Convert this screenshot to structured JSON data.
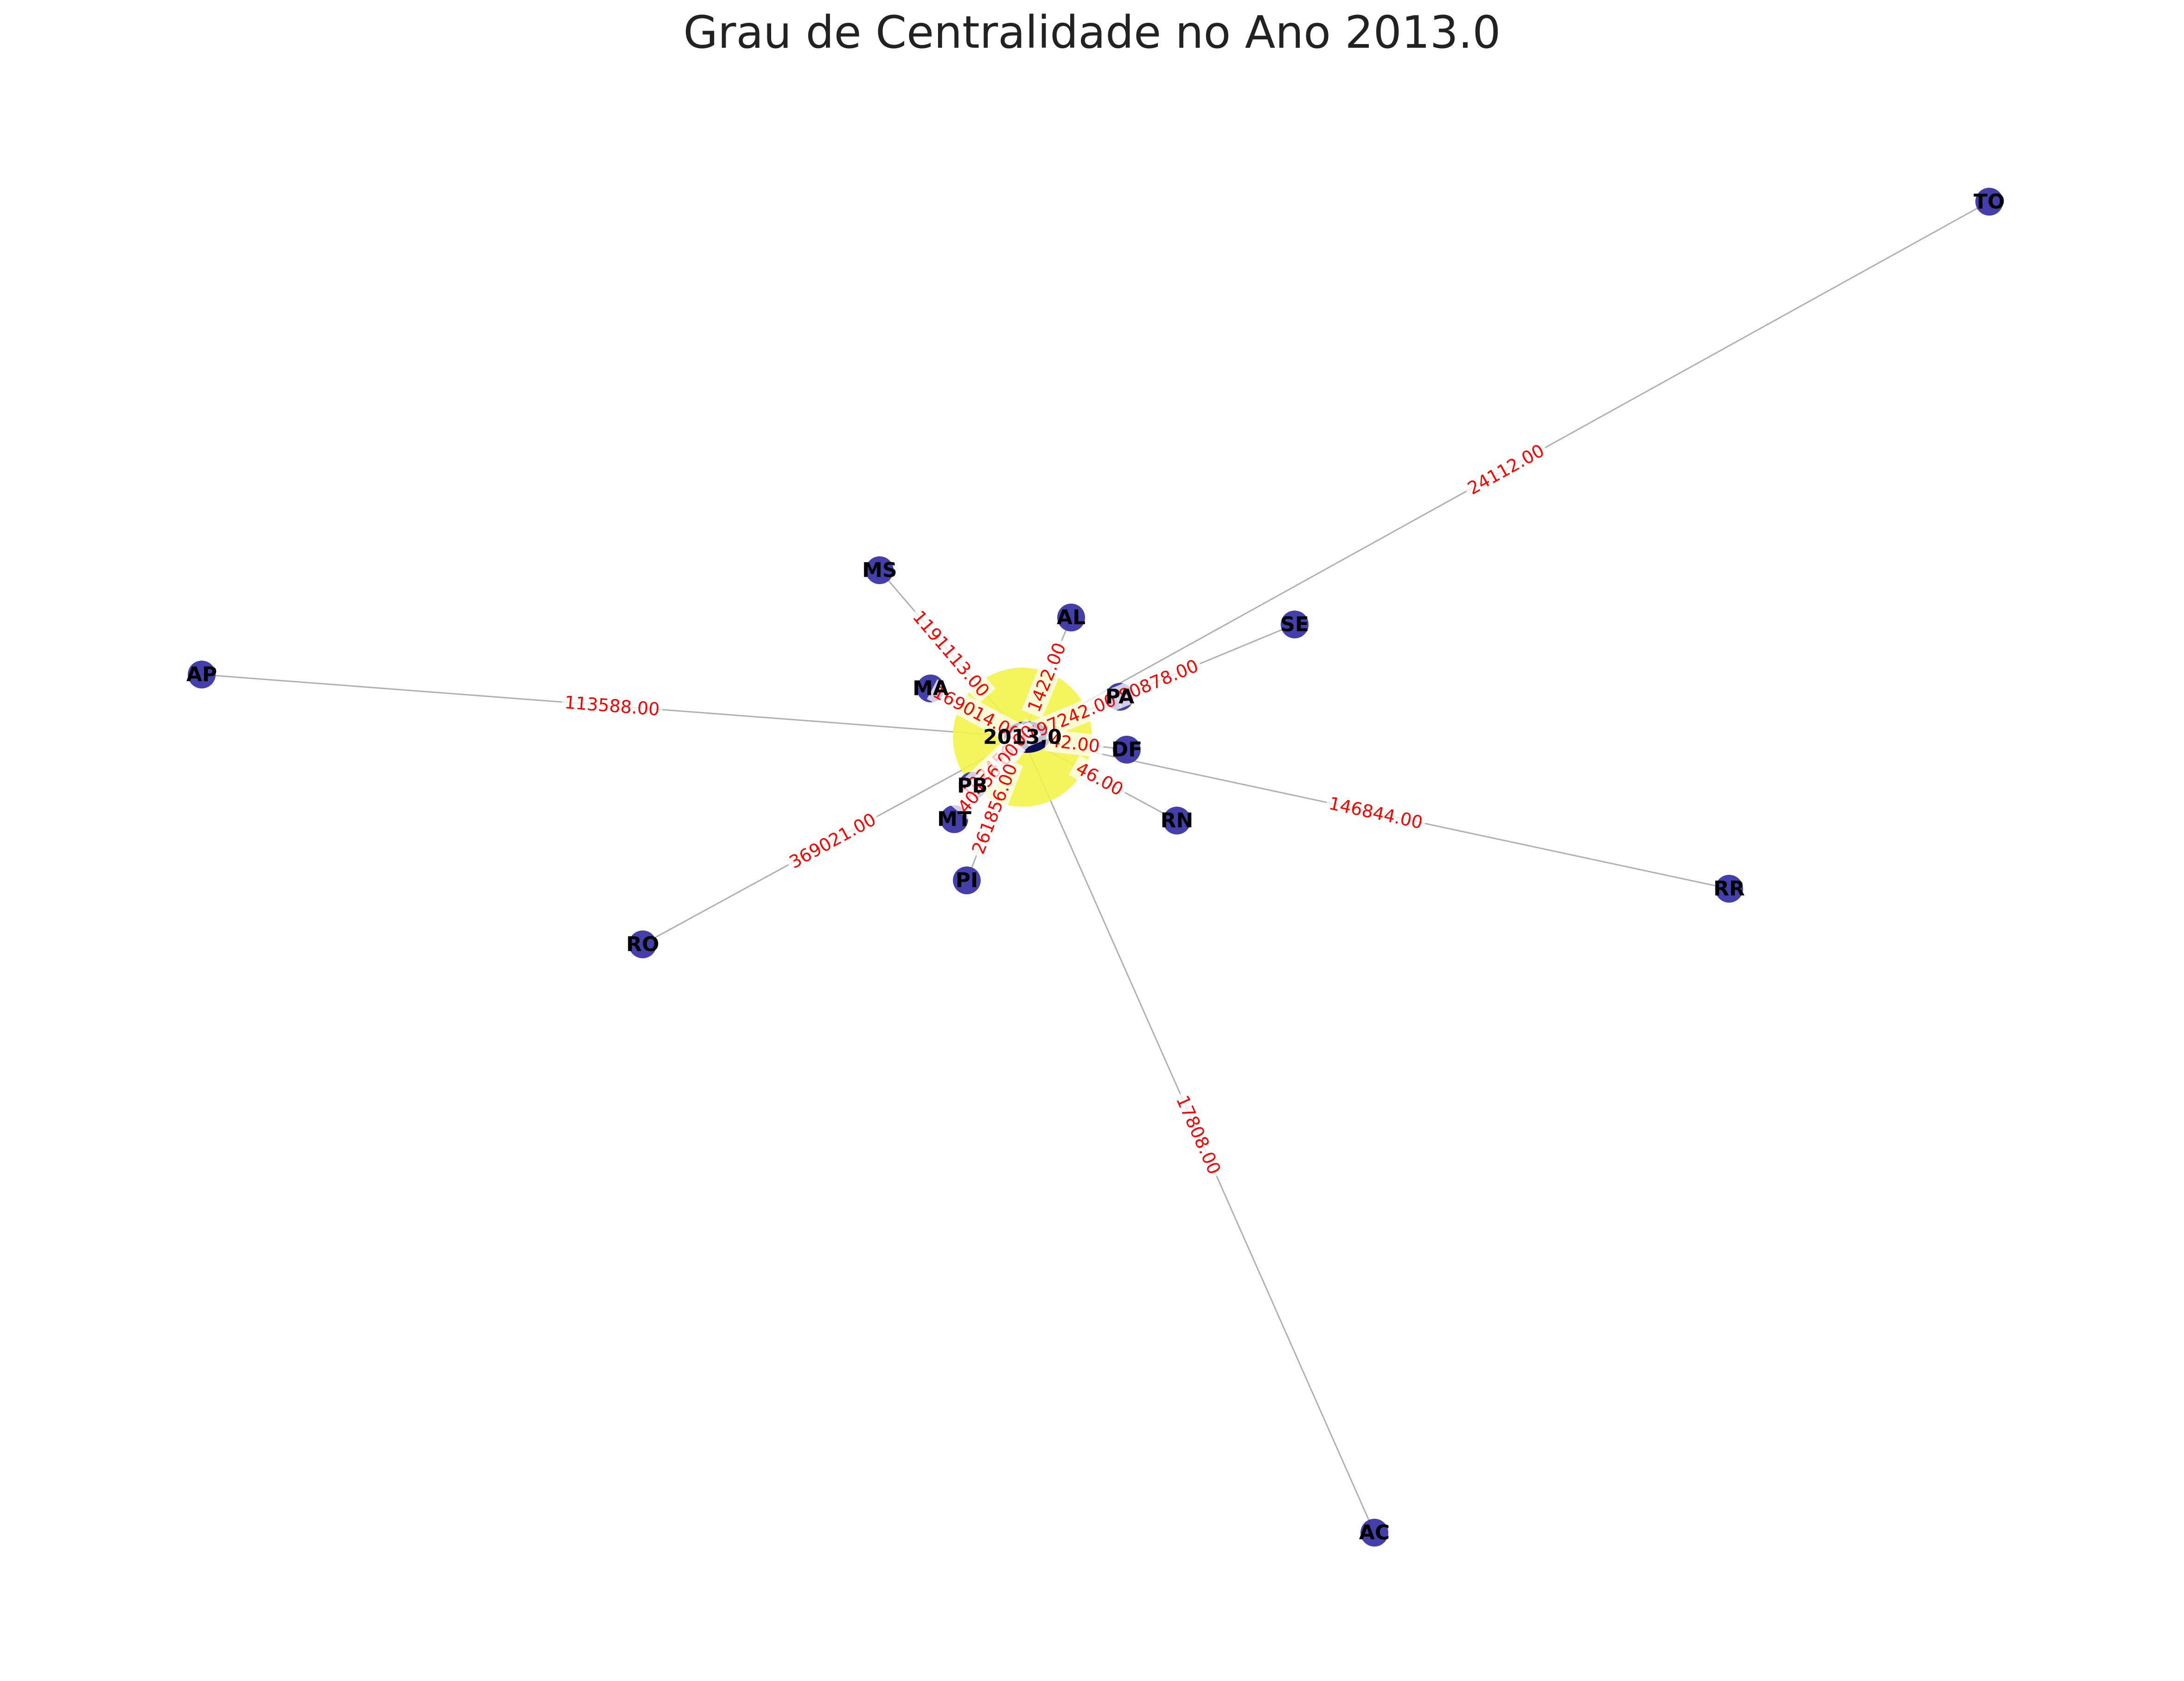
{
  "title": "Grau de Centralidade no Ano 2013.0",
  "colors": {
    "edge": "#b0b0b0",
    "node": "#3a35a6",
    "hub": "#f3f34a",
    "edge_label": "#ff0000",
    "node_label": "#000000"
  },
  "hub": {
    "id": "hub",
    "label": "2013.0"
  },
  "nodes": [
    {
      "id": "TO",
      "label": "TO"
    },
    {
      "id": "AP",
      "label": "AP"
    },
    {
      "id": "MS",
      "label": "MS"
    },
    {
      "id": "AL",
      "label": "AL"
    },
    {
      "id": "SE",
      "label": "SE"
    },
    {
      "id": "MA",
      "label": "MA"
    },
    {
      "id": "PA",
      "label": "PA"
    },
    {
      "id": "DF",
      "label": "DF"
    },
    {
      "id": "PB",
      "label": "PB"
    },
    {
      "id": "MT",
      "label": "MT"
    },
    {
      "id": "RN",
      "label": "RN"
    },
    {
      "id": "PI",
      "label": "PI"
    },
    {
      "id": "RO",
      "label": "RO"
    },
    {
      "id": "RR",
      "label": "RR"
    },
    {
      "id": "AC",
      "label": "AC"
    }
  ],
  "edges": [
    {
      "target": "TO",
      "label": "24112.00"
    },
    {
      "target": "AP",
      "label": "113588.00"
    },
    {
      "target": "MS",
      "label": "1191113.00"
    },
    {
      "target": "AL",
      "label": "1422.00"
    },
    {
      "target": "SE",
      "label": "80878.00"
    },
    {
      "target": "MA",
      "label": "169014.00"
    },
    {
      "target": "PA",
      "label": "797242.00"
    },
    {
      "target": "DF",
      "label": "42.00"
    },
    {
      "target": "PB",
      "label": "102456.00"
    },
    {
      "target": "MT",
      "label": "40456.00"
    },
    {
      "target": "RN",
      "label": "46.00"
    },
    {
      "target": "PI",
      "label": "261856.00"
    },
    {
      "target": "RO",
      "label": "369021.00"
    },
    {
      "target": "RR",
      "label": "146844.00"
    },
    {
      "target": "AC",
      "label": "17808.00"
    }
  ]
}
